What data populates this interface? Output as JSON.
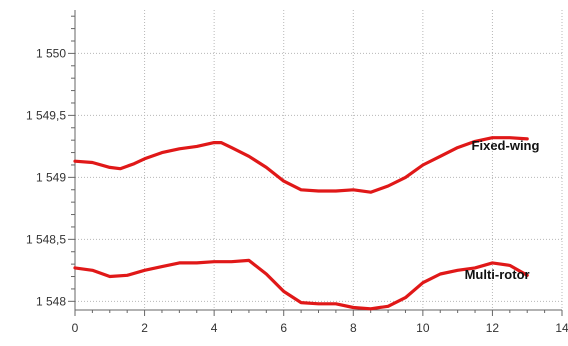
{
  "chart_data": {
    "type": "line",
    "title": "",
    "xlabel": "",
    "ylabel": "",
    "xlim": [
      0,
      14
    ],
    "ylim": [
      1547.93,
      1550.35
    ],
    "grid": true,
    "x_ticks": [
      0,
      2,
      4,
      6,
      8,
      10,
      12,
      14
    ],
    "x_tick_labels": [
      "0",
      "2",
      "4",
      "6",
      "8",
      "10",
      "12",
      "14"
    ],
    "y_ticks": [
      1548,
      1548.5,
      1549,
      1549.5,
      1550
    ],
    "y_tick_labels": [
      "1 548",
      "1 548,5",
      "1 549",
      "1 549,5",
      "1 550"
    ],
    "series_color": "#e01818",
    "series": [
      {
        "name": "Fixed-wing",
        "x": [
          0,
          0.5,
          1.0,
          1.3,
          1.7,
          2.0,
          2.5,
          3.0,
          3.5,
          4.0,
          4.2,
          4.5,
          5.0,
          5.5,
          6.0,
          6.5,
          7.0,
          7.5,
          8.0,
          8.5,
          9.0,
          9.5,
          10.0,
          10.5,
          11.0,
          11.5,
          12.0,
          12.5,
          13.0
        ],
        "values": [
          1549.13,
          1549.12,
          1549.08,
          1549.07,
          1549.11,
          1549.15,
          1549.2,
          1549.23,
          1549.25,
          1549.28,
          1549.28,
          1549.24,
          1549.17,
          1549.08,
          1548.97,
          1548.9,
          1548.89,
          1548.89,
          1548.9,
          1548.88,
          1548.93,
          1549.0,
          1549.1,
          1549.17,
          1549.24,
          1549.29,
          1549.32,
          1549.32,
          1549.31
        ]
      },
      {
        "name": "Multi-rotor",
        "x": [
          0,
          0.5,
          1.0,
          1.5,
          2.0,
          2.5,
          3.0,
          3.5,
          4.0,
          4.5,
          5.0,
          5.5,
          6.0,
          6.5,
          7.0,
          7.5,
          8.0,
          8.5,
          9.0,
          9.5,
          10.0,
          10.5,
          11.0,
          11.5,
          12.0,
          12.5,
          13.0
        ],
        "values": [
          1548.27,
          1548.25,
          1548.2,
          1548.21,
          1548.25,
          1548.28,
          1548.31,
          1548.31,
          1548.32,
          1548.32,
          1548.33,
          1548.22,
          1548.08,
          1547.99,
          1547.98,
          1547.98,
          1547.95,
          1547.94,
          1547.96,
          1548.03,
          1548.15,
          1548.22,
          1548.25,
          1548.27,
          1548.31,
          1548.29,
          1548.21
        ]
      }
    ]
  }
}
